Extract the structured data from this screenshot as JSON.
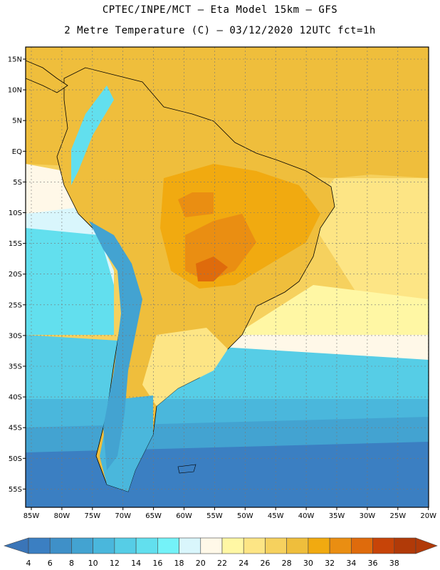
{
  "header": {
    "line1": "CPTEC/INPE/MCT –  Eta Model 15km – GFS",
    "line2": "2 Metre Temperature (C) – 03/12/2020 12UTC fct=1h"
  },
  "map": {
    "lat_labels": [
      "15N",
      "10N",
      "5N",
      "EQ",
      "5S",
      "10S",
      "15S",
      "20S",
      "25S",
      "30S",
      "35S",
      "40S",
      "45S",
      "50S",
      "55S"
    ],
    "lon_labels": [
      "85W",
      "80W",
      "75W",
      "70W",
      "65W",
      "60W",
      "55W",
      "50W",
      "45W",
      "40W",
      "35W",
      "30W",
      "25W",
      "20W"
    ],
    "lat_range": [
      15,
      -55
    ],
    "lon_range": [
      -85,
      -20
    ]
  },
  "colorbar": {
    "labels": [
      "4",
      "6",
      "8",
      "10",
      "12",
      "14",
      "16",
      "18",
      "20",
      "22",
      "24",
      "26",
      "28",
      "30",
      "32",
      "34",
      "36",
      "38"
    ],
    "colors": [
      "#3b7fc2",
      "#3f90c8",
      "#43a3d1",
      "#4ab7dc",
      "#56cde6",
      "#62dfee",
      "#74f2f8",
      "#d9f6fc",
      "#fff8e8",
      "#fff7a4",
      "#fde585",
      "#f6d15e",
      "#efbe3c",
      "#f1aa10",
      "#ea8e12",
      "#df6b0c",
      "#c74408",
      "#b13a08"
    ],
    "low_color": "#3a75b8",
    "high_color": "#b13a08"
  }
}
